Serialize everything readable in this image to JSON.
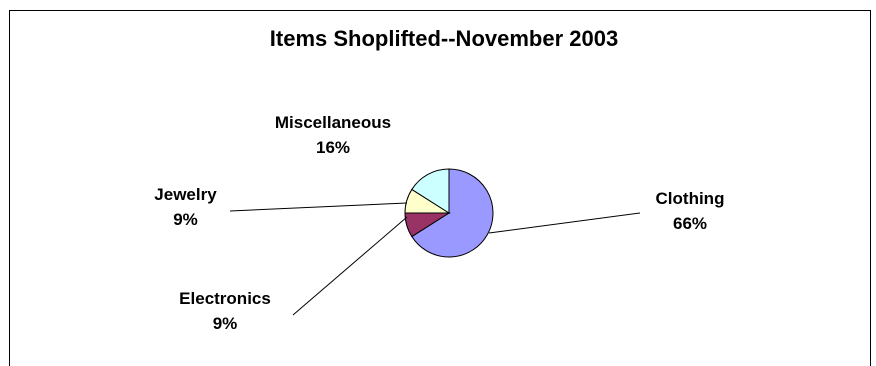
{
  "chart_data": {
    "type": "pie",
    "title": "Items Shoplifted--November 2003",
    "slices": [
      {
        "label": "Clothing",
        "value": 66,
        "pct_label": "66%",
        "color": "#9999FF"
      },
      {
        "label": "Electronics",
        "value": 9,
        "pct_label": "9%",
        "color": "#993366"
      },
      {
        "label": "Jewelry",
        "value": 9,
        "pct_label": "9%",
        "color": "#FFFFCC"
      },
      {
        "label": "Miscellaneous",
        "value": 16,
        "pct_label": "16%",
        "color": "#CCFFFF"
      }
    ],
    "legend": "none",
    "data_labels": "category name and percentage, with leader lines"
  }
}
